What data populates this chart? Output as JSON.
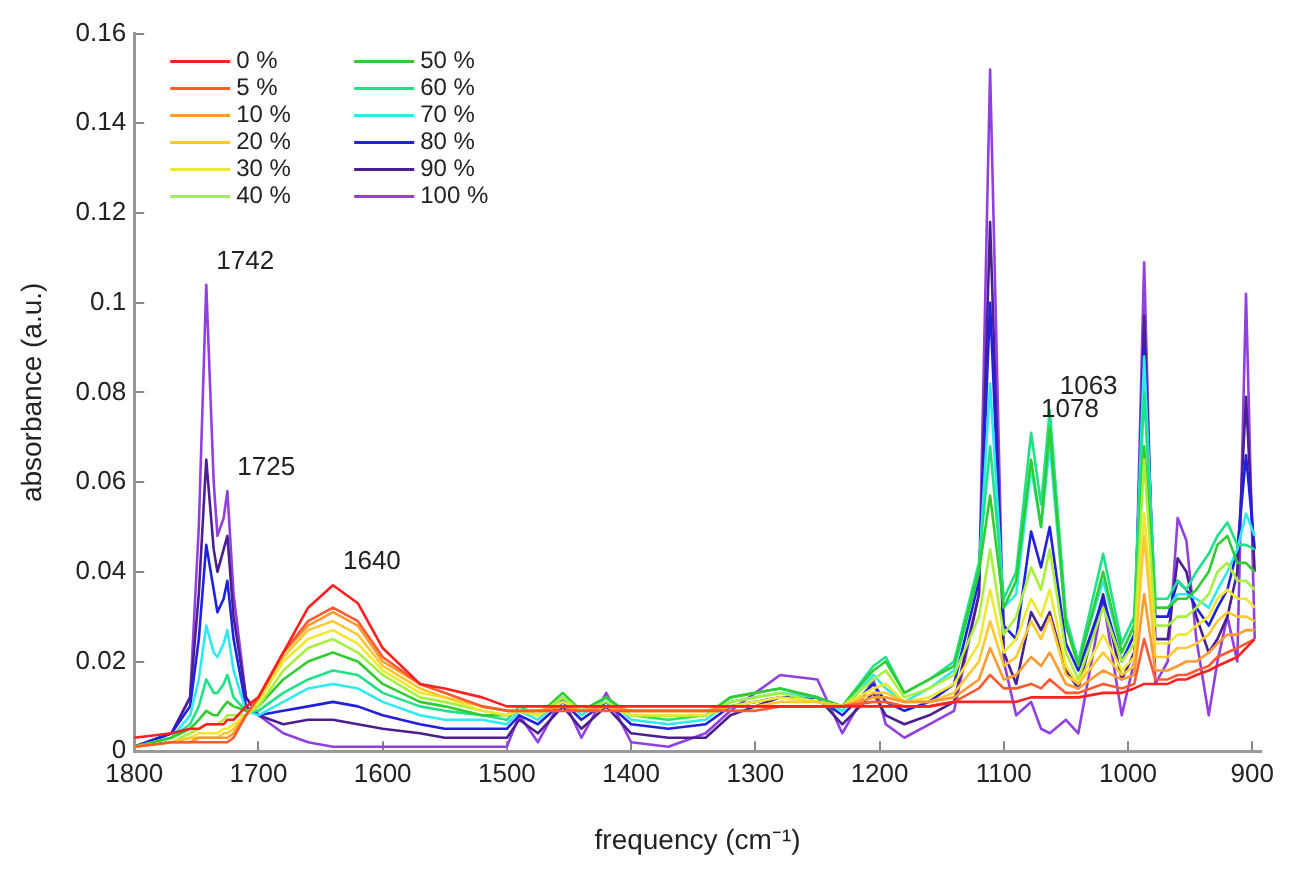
{
  "chart_data": {
    "type": "line",
    "xlabel": "frequency (cm⁻¹)",
    "ylabel": "absorbance (a.u.)",
    "xlim": [
      1800,
      893
    ],
    "xticks": [
      1800,
      1700,
      1600,
      1500,
      1400,
      1300,
      1200,
      1100,
      1000,
      900
    ],
    "ylim": [
      0,
      0.16
    ],
    "yticks": [
      0,
      0.02,
      0.04,
      0.06,
      0.08,
      0.1,
      0.12,
      0.14,
      0.16
    ],
    "grid": false,
    "legend": "top left",
    "x": [
      1800,
      1770,
      1755,
      1748,
      1742,
      1736,
      1733,
      1728,
      1725,
      1720,
      1710,
      1700,
      1680,
      1660,
      1640,
      1620,
      1600,
      1570,
      1550,
      1520,
      1500,
      1490,
      1475,
      1455,
      1440,
      1420,
      1400,
      1370,
      1340,
      1320,
      1300,
      1280,
      1250,
      1230,
      1205,
      1195,
      1180,
      1160,
      1140,
      1120,
      1111,
      1100,
      1090,
      1078,
      1070,
      1063,
      1050,
      1040,
      1020,
      1005,
      995,
      987,
      978,
      968,
      960,
      953,
      945,
      935,
      928,
      920,
      912,
      905,
      898
    ],
    "series": [
      {
        "name": "0 %",
        "color": "#ff2020",
        "values": [
          0.003,
          0.004,
          0.005,
          0.005,
          0.006,
          0.006,
          0.006,
          0.006,
          0.007,
          0.007,
          0.01,
          0.012,
          0.022,
          0.032,
          0.037,
          0.033,
          0.023,
          0.015,
          0.014,
          0.012,
          0.01,
          0.01,
          0.01,
          0.01,
          0.01,
          0.01,
          0.01,
          0.01,
          0.01,
          0.01,
          0.01,
          0.01,
          0.01,
          0.01,
          0.01,
          0.01,
          0.01,
          0.01,
          0.011,
          0.011,
          0.011,
          0.011,
          0.011,
          0.012,
          0.012,
          0.012,
          0.012,
          0.012,
          0.013,
          0.013,
          0.014,
          0.015,
          0.015,
          0.015,
          0.016,
          0.016,
          0.017,
          0.018,
          0.019,
          0.02,
          0.021,
          0.023,
          0.025
        ]
      },
      {
        "name": "5 %",
        "color": "#ff5a30",
        "values": [
          0.001,
          0.002,
          0.002,
          0.002,
          0.002,
          0.002,
          0.002,
          0.002,
          0.002,
          0.003,
          0.008,
          0.012,
          0.022,
          0.029,
          0.032,
          0.029,
          0.021,
          0.015,
          0.013,
          0.01,
          0.009,
          0.009,
          0.009,
          0.009,
          0.009,
          0.009,
          0.009,
          0.009,
          0.009,
          0.009,
          0.009,
          0.01,
          0.01,
          0.01,
          0.011,
          0.011,
          0.01,
          0.01,
          0.011,
          0.014,
          0.017,
          0.014,
          0.014,
          0.015,
          0.014,
          0.016,
          0.013,
          0.013,
          0.015,
          0.014,
          0.015,
          0.025,
          0.016,
          0.016,
          0.017,
          0.017,
          0.018,
          0.019,
          0.021,
          0.022,
          0.023,
          0.024,
          0.025
        ]
      },
      {
        "name": "10 %",
        "color": "#ff9a30",
        "values": [
          0.001,
          0.002,
          0.002,
          0.003,
          0.003,
          0.003,
          0.003,
          0.003,
          0.003,
          0.004,
          0.008,
          0.012,
          0.022,
          0.028,
          0.031,
          0.028,
          0.02,
          0.015,
          0.013,
          0.01,
          0.009,
          0.009,
          0.009,
          0.01,
          0.009,
          0.01,
          0.009,
          0.009,
          0.009,
          0.01,
          0.01,
          0.01,
          0.01,
          0.01,
          0.012,
          0.012,
          0.011,
          0.011,
          0.012,
          0.016,
          0.023,
          0.016,
          0.017,
          0.021,
          0.019,
          0.022,
          0.015,
          0.014,
          0.018,
          0.016,
          0.017,
          0.035,
          0.018,
          0.018,
          0.019,
          0.02,
          0.02,
          0.022,
          0.024,
          0.026,
          0.026,
          0.027,
          0.027
        ]
      },
      {
        "name": "20 %",
        "color": "#ffc830",
        "values": [
          0.001,
          0.002,
          0.003,
          0.003,
          0.003,
          0.003,
          0.003,
          0.004,
          0.004,
          0.005,
          0.008,
          0.012,
          0.021,
          0.027,
          0.029,
          0.026,
          0.019,
          0.014,
          0.012,
          0.01,
          0.009,
          0.009,
          0.009,
          0.01,
          0.009,
          0.01,
          0.009,
          0.009,
          0.009,
          0.01,
          0.01,
          0.011,
          0.011,
          0.01,
          0.013,
          0.013,
          0.011,
          0.011,
          0.013,
          0.02,
          0.029,
          0.019,
          0.021,
          0.029,
          0.025,
          0.03,
          0.017,
          0.015,
          0.022,
          0.017,
          0.019,
          0.048,
          0.021,
          0.021,
          0.023,
          0.023,
          0.024,
          0.026,
          0.029,
          0.031,
          0.03,
          0.03,
          0.029
        ]
      },
      {
        "name": "30 %",
        "color": "#f0e830",
        "values": [
          0.001,
          0.002,
          0.003,
          0.004,
          0.004,
          0.004,
          0.004,
          0.005,
          0.005,
          0.006,
          0.008,
          0.011,
          0.02,
          0.025,
          0.027,
          0.024,
          0.018,
          0.013,
          0.012,
          0.009,
          0.008,
          0.009,
          0.008,
          0.011,
          0.009,
          0.01,
          0.008,
          0.008,
          0.008,
          0.01,
          0.011,
          0.012,
          0.011,
          0.01,
          0.014,
          0.015,
          0.011,
          0.012,
          0.015,
          0.024,
          0.036,
          0.022,
          0.025,
          0.034,
          0.03,
          0.036,
          0.019,
          0.015,
          0.026,
          0.018,
          0.021,
          0.053,
          0.024,
          0.024,
          0.026,
          0.026,
          0.028,
          0.03,
          0.034,
          0.036,
          0.034,
          0.034,
          0.032
        ]
      },
      {
        "name": "40 %",
        "color": "#a8f040",
        "values": [
          0.001,
          0.002,
          0.004,
          0.005,
          0.006,
          0.006,
          0.006,
          0.007,
          0.008,
          0.008,
          0.008,
          0.01,
          0.018,
          0.023,
          0.025,
          0.022,
          0.017,
          0.012,
          0.011,
          0.009,
          0.008,
          0.009,
          0.008,
          0.012,
          0.009,
          0.011,
          0.008,
          0.008,
          0.008,
          0.011,
          0.012,
          0.013,
          0.011,
          0.01,
          0.016,
          0.018,
          0.012,
          0.014,
          0.017,
          0.03,
          0.045,
          0.026,
          0.03,
          0.041,
          0.036,
          0.045,
          0.022,
          0.016,
          0.032,
          0.02,
          0.024,
          0.065,
          0.028,
          0.028,
          0.03,
          0.03,
          0.032,
          0.035,
          0.04,
          0.042,
          0.038,
          0.038,
          0.036
        ]
      },
      {
        "name": "50 %",
        "color": "#30cc30",
        "values": [
          0.001,
          0.003,
          0.005,
          0.007,
          0.009,
          0.008,
          0.008,
          0.01,
          0.011,
          0.01,
          0.009,
          0.01,
          0.016,
          0.02,
          0.022,
          0.02,
          0.015,
          0.011,
          0.01,
          0.008,
          0.008,
          0.009,
          0.008,
          0.013,
          0.009,
          0.012,
          0.008,
          0.008,
          0.008,
          0.012,
          0.013,
          0.014,
          0.012,
          0.01,
          0.018,
          0.02,
          0.013,
          0.016,
          0.019,
          0.04,
          0.057,
          0.032,
          0.038,
          0.065,
          0.05,
          0.072,
          0.028,
          0.019,
          0.04,
          0.022,
          0.028,
          0.068,
          0.032,
          0.032,
          0.034,
          0.034,
          0.036,
          0.04,
          0.046,
          0.048,
          0.042,
          0.042,
          0.04
        ]
      },
      {
        "name": "60 %",
        "color": "#20e088",
        "values": [
          0.001,
          0.003,
          0.006,
          0.01,
          0.016,
          0.013,
          0.013,
          0.015,
          0.017,
          0.012,
          0.009,
          0.009,
          0.013,
          0.016,
          0.018,
          0.017,
          0.013,
          0.01,
          0.009,
          0.008,
          0.007,
          0.01,
          0.008,
          0.012,
          0.009,
          0.012,
          0.008,
          0.007,
          0.008,
          0.012,
          0.013,
          0.014,
          0.012,
          0.01,
          0.019,
          0.021,
          0.013,
          0.016,
          0.02,
          0.042,
          0.068,
          0.034,
          0.04,
          0.071,
          0.055,
          0.076,
          0.03,
          0.02,
          0.044,
          0.024,
          0.03,
          0.08,
          0.034,
          0.034,
          0.038,
          0.036,
          0.04,
          0.044,
          0.048,
          0.051,
          0.046,
          0.046,
          0.045
        ]
      },
      {
        "name": "70 %",
        "color": "#30e8f0",
        "values": [
          0.001,
          0.003,
          0.008,
          0.016,
          0.028,
          0.022,
          0.021,
          0.024,
          0.027,
          0.018,
          0.009,
          0.008,
          0.011,
          0.014,
          0.015,
          0.014,
          0.011,
          0.008,
          0.007,
          0.007,
          0.006,
          0.009,
          0.007,
          0.012,
          0.008,
          0.012,
          0.007,
          0.006,
          0.007,
          0.011,
          0.012,
          0.013,
          0.012,
          0.009,
          0.017,
          0.014,
          0.011,
          0.014,
          0.018,
          0.04,
          0.082,
          0.032,
          0.035,
          0.063,
          0.05,
          0.068,
          0.028,
          0.02,
          0.038,
          0.022,
          0.028,
          0.088,
          0.032,
          0.032,
          0.035,
          0.035,
          0.034,
          0.032,
          0.036,
          0.04,
          0.045,
          0.053,
          0.048
        ]
      },
      {
        "name": "80 %",
        "color": "#2020e0",
        "values": [
          0.001,
          0.004,
          0.01,
          0.025,
          0.046,
          0.036,
          0.031,
          0.034,
          0.038,
          0.025,
          0.01,
          0.008,
          0.009,
          0.01,
          0.011,
          0.01,
          0.008,
          0.006,
          0.005,
          0.005,
          0.005,
          0.008,
          0.006,
          0.011,
          0.007,
          0.011,
          0.006,
          0.005,
          0.006,
          0.01,
          0.011,
          0.012,
          0.012,
          0.008,
          0.015,
          0.011,
          0.009,
          0.011,
          0.015,
          0.038,
          0.1,
          0.028,
          0.025,
          0.049,
          0.041,
          0.05,
          0.024,
          0.018,
          0.034,
          0.02,
          0.026,
          0.09,
          0.03,
          0.03,
          0.038,
          0.036,
          0.032,
          0.028,
          0.032,
          0.036,
          0.045,
          0.066,
          0.045
        ]
      },
      {
        "name": "90 %",
        "color": "#4b1f8f",
        "values": [
          0.001,
          0.004,
          0.012,
          0.035,
          0.065,
          0.045,
          0.04,
          0.045,
          0.048,
          0.03,
          0.012,
          0.008,
          0.006,
          0.007,
          0.007,
          0.006,
          0.005,
          0.004,
          0.003,
          0.003,
          0.003,
          0.007,
          0.004,
          0.01,
          0.005,
          0.01,
          0.004,
          0.003,
          0.003,
          0.008,
          0.01,
          0.012,
          0.012,
          0.006,
          0.013,
          0.008,
          0.006,
          0.008,
          0.011,
          0.035,
          0.118,
          0.022,
          0.015,
          0.031,
          0.027,
          0.031,
          0.018,
          0.014,
          0.035,
          0.016,
          0.022,
          0.097,
          0.025,
          0.025,
          0.043,
          0.04,
          0.03,
          0.022,
          0.025,
          0.03,
          0.04,
          0.079,
          0.04
        ]
      },
      {
        "name": "100 %",
        "color": "#9040e0",
        "values": [
          0.001,
          0.004,
          0.012,
          0.05,
          0.104,
          0.06,
          0.048,
          0.052,
          0.058,
          0.035,
          0.012,
          0.008,
          0.004,
          0.002,
          0.001,
          0.001,
          0.001,
          0.001,
          0.001,
          0.001,
          0.001,
          0.008,
          0.002,
          0.012,
          0.003,
          0.013,
          0.002,
          0.001,
          0.004,
          0.009,
          0.013,
          0.017,
          0.016,
          0.004,
          0.016,
          0.006,
          0.003,
          0.006,
          0.009,
          0.035,
          0.152,
          0.02,
          0.008,
          0.011,
          0.005,
          0.004,
          0.007,
          0.004,
          0.034,
          0.008,
          0.02,
          0.109,
          0.015,
          0.02,
          0.052,
          0.047,
          0.025,
          0.008,
          0.02,
          0.03,
          0.02,
          0.102,
          0.025
        ]
      }
    ],
    "annotations": [
      {
        "text": "1742",
        "x": 1742,
        "y": 0.104
      },
      {
        "text": "1725",
        "x": 1725,
        "y": 0.058
      },
      {
        "text": "1640",
        "x": 1640,
        "y": 0.037
      },
      {
        "text": "1078",
        "x": 1078,
        "y": 0.071
      },
      {
        "text": "1063",
        "x": 1063,
        "y": 0.076
      }
    ]
  }
}
